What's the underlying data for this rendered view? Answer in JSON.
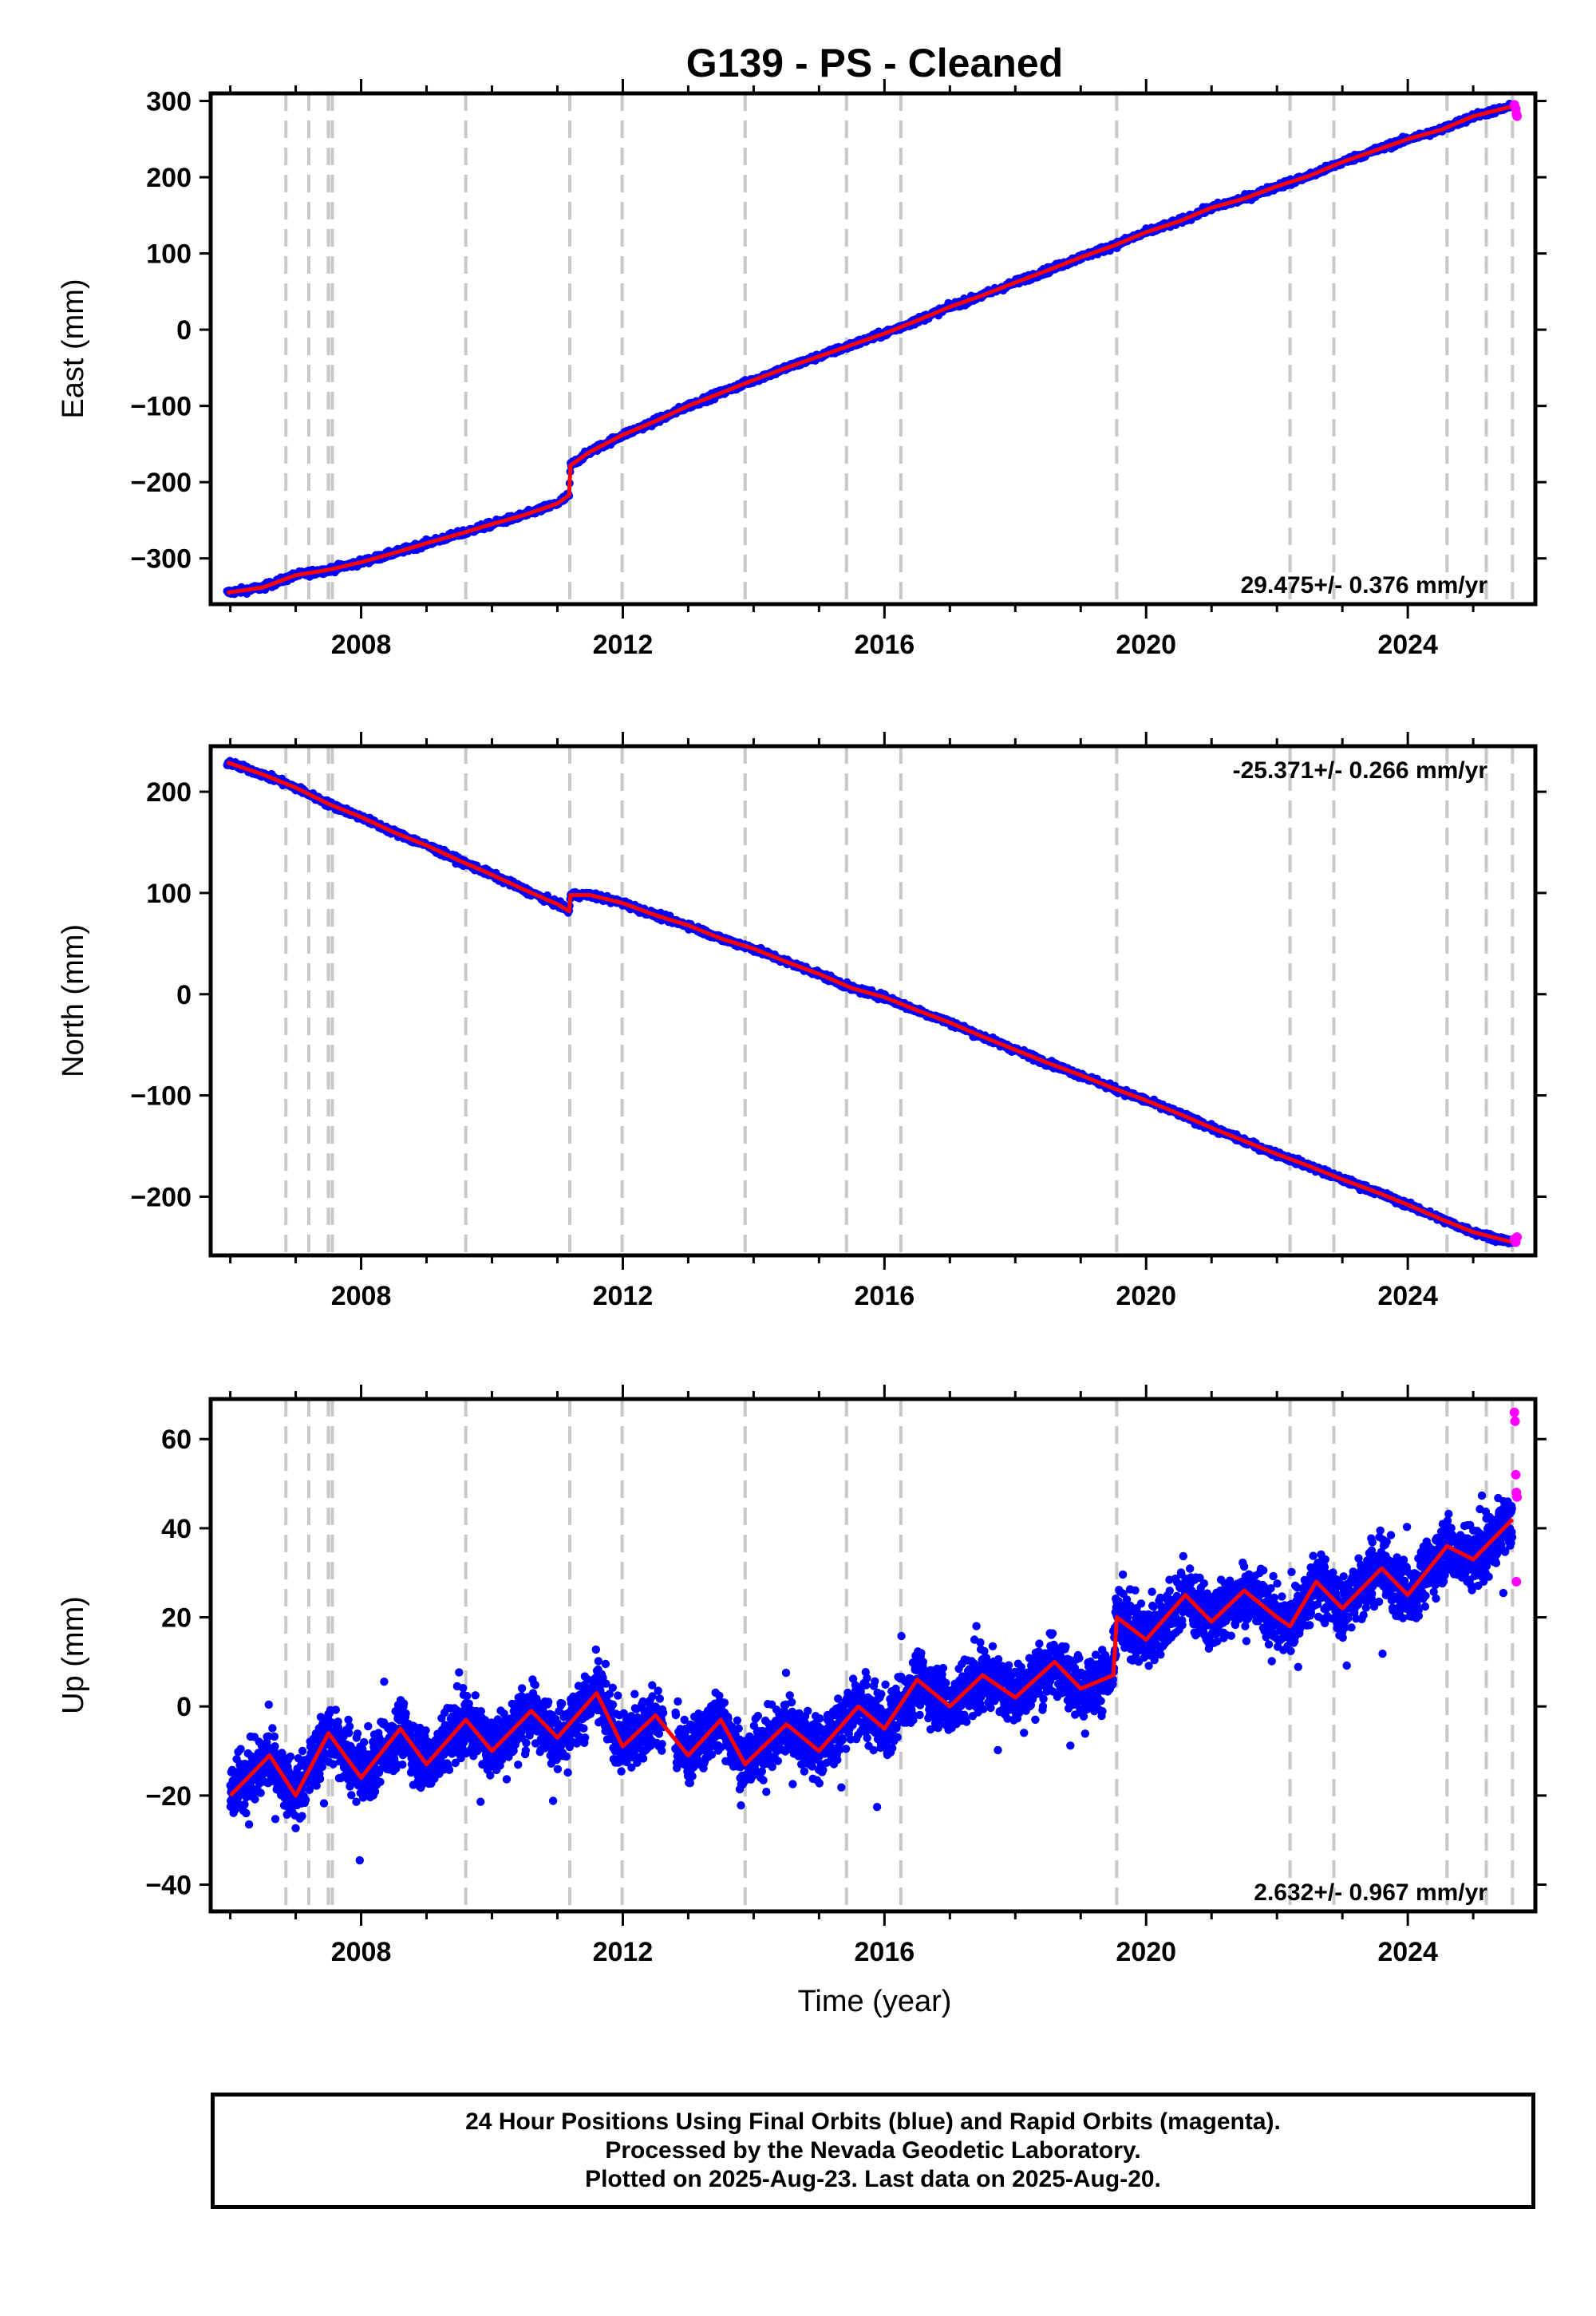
{
  "title": "G139  - PS - Cleaned",
  "xlabel": "Time (year)",
  "colors": {
    "final": "#0000ff",
    "rapid": "#ff00ff",
    "model": "#ff0000",
    "events": "#c8c8c8"
  },
  "chart_data": [
    {
      "type": "scatter",
      "component": "East",
      "ylabel": "East (mm)",
      "rate_label": "29.475+/- 0.376 mm/yr",
      "xlim": [
        2005.7,
        2025.95
      ],
      "ylim": [
        -360,
        310
      ],
      "yticks": [
        -300,
        -200,
        -100,
        0,
        100,
        200,
        300
      ],
      "ytick_labels": [
        "−300",
        "−200",
        "−100",
        "0",
        "100",
        "200",
        "300"
      ],
      "xticks": [
        2008,
        2012,
        2016,
        2020,
        2024
      ],
      "xtick_labels": [
        "2008",
        "2012",
        "2016",
        "2020",
        "2024"
      ],
      "events": [
        2006.85,
        2007.2,
        2007.5,
        2007.56,
        2009.6,
        2011.19,
        2011.99,
        2013.87,
        2015.42,
        2016.25,
        2019.55,
        2022.2,
        2022.87,
        2024.6,
        2025.2,
        2025.6
      ],
      "series": [
        {
          "name": "Final Orbits (blue)",
          "points": [
            [
              2005.95,
              -345
            ],
            [
              2006.5,
              -338
            ],
            [
              2007.0,
              -322
            ],
            [
              2007.5,
              -315
            ],
            [
              2008.0,
              -305
            ],
            [
              2008.5,
              -293
            ],
            [
              2009.0,
              -280
            ],
            [
              2009.5,
              -268
            ],
            [
              2010.0,
              -255
            ],
            [
              2010.5,
              -243
            ],
            [
              2011.0,
              -228
            ],
            [
              2011.18,
              -217
            ],
            [
              2011.2,
              -178
            ],
            [
              2011.5,
              -160
            ],
            [
              2012.0,
              -138
            ],
            [
              2012.5,
              -120
            ],
            [
              2013.0,
              -100
            ],
            [
              2013.5,
              -83
            ],
            [
              2014.0,
              -66
            ],
            [
              2014.5,
              -50
            ],
            [
              2015.0,
              -35
            ],
            [
              2015.5,
              -20
            ],
            [
              2016.0,
              -5
            ],
            [
              2016.5,
              12
            ],
            [
              2017.0,
              30
            ],
            [
              2017.5,
              45
            ],
            [
              2018.0,
              62
            ],
            [
              2018.5,
              78
            ],
            [
              2019.0,
              95
            ],
            [
              2019.5,
              110
            ],
            [
              2020.0,
              128
            ],
            [
              2020.5,
              142
            ],
            [
              2021.0,
              160
            ],
            [
              2021.5,
              172
            ],
            [
              2022.0,
              188
            ],
            [
              2022.5,
              202
            ],
            [
              2023.0,
              220
            ],
            [
              2023.5,
              235
            ],
            [
              2024.0,
              250
            ],
            [
              2024.5,
              262
            ],
            [
              2025.0,
              280
            ],
            [
              2025.6,
              293
            ]
          ]
        },
        {
          "name": "Rapid Orbits (magenta)",
          "points": [
            [
              2025.63,
              295
            ],
            [
              2025.65,
              290
            ],
            [
              2025.66,
              283
            ],
            [
              2025.67,
              280
            ]
          ]
        }
      ]
    },
    {
      "type": "scatter",
      "component": "North",
      "ylabel": "North (mm)",
      "rate_label": "-25.371+/- 0.266 mm/yr",
      "xlim": [
        2005.7,
        2025.95
      ],
      "ylim": [
        -258,
        245
      ],
      "yticks": [
        -200,
        -100,
        0,
        100,
        200
      ],
      "ytick_labels": [
        "−200",
        "−100",
        "0",
        "100",
        "200"
      ],
      "xticks": [
        2008,
        2012,
        2016,
        2020,
        2024
      ],
      "xtick_labels": [
        "2008",
        "2012",
        "2016",
        "2020",
        "2024"
      ],
      "events": [
        2006.85,
        2007.2,
        2007.5,
        2007.56,
        2009.6,
        2011.19,
        2011.99,
        2013.87,
        2015.42,
        2016.25,
        2019.55,
        2022.2,
        2022.87,
        2024.6,
        2025.2,
        2025.6
      ],
      "series": [
        {
          "name": "Final Orbits (blue)",
          "points": [
            [
              2005.95,
              229
            ],
            [
              2006.5,
              217
            ],
            [
              2007.0,
              204
            ],
            [
              2007.5,
              188
            ],
            [
              2008.0,
              175
            ],
            [
              2008.5,
              160
            ],
            [
              2009.0,
              147
            ],
            [
              2009.5,
              132
            ],
            [
              2010.0,
              118
            ],
            [
              2010.5,
              103
            ],
            [
              2011.0,
              89
            ],
            [
              2011.18,
              82
            ],
            [
              2011.2,
              98
            ],
            [
              2011.5,
              98
            ],
            [
              2012.0,
              90
            ],
            [
              2012.5,
              78
            ],
            [
              2013.0,
              68
            ],
            [
              2013.5,
              55
            ],
            [
              2014.0,
              45
            ],
            [
              2014.5,
              32
            ],
            [
              2015.0,
              20
            ],
            [
              2015.5,
              6
            ],
            [
              2016.0,
              -3
            ],
            [
              2016.5,
              -16
            ],
            [
              2017.0,
              -28
            ],
            [
              2017.5,
              -42
            ],
            [
              2018.0,
              -55
            ],
            [
              2018.5,
              -68
            ],
            [
              2019.0,
              -80
            ],
            [
              2019.5,
              -93
            ],
            [
              2020.0,
              -105
            ],
            [
              2020.5,
              -118
            ],
            [
              2021.0,
              -132
            ],
            [
              2021.5,
              -145
            ],
            [
              2022.0,
              -158
            ],
            [
              2022.5,
              -170
            ],
            [
              2023.0,
              -183
            ],
            [
              2023.5,
              -195
            ],
            [
              2024.0,
              -208
            ],
            [
              2024.5,
              -222
            ],
            [
              2025.0,
              -235
            ],
            [
              2025.6,
              -245
            ]
          ]
        },
        {
          "name": "Rapid Orbits (magenta)",
          "points": [
            [
              2025.63,
              -242
            ],
            [
              2025.65,
              -245
            ],
            [
              2025.67,
              -240
            ]
          ]
        }
      ]
    },
    {
      "type": "scatter",
      "component": "Up",
      "ylabel": "Up (mm)",
      "rate_label": "2.632+/- 0.967 mm/yr",
      "xlim": [
        2005.7,
        2025.95
      ],
      "ylim": [
        -46,
        69
      ],
      "yticks": [
        -40,
        -20,
        0,
        20,
        40,
        60
      ],
      "ytick_labels": [
        "−40",
        "−20",
        "0",
        "20",
        "40",
        "60"
      ],
      "xticks": [
        2008,
        2012,
        2016,
        2020,
        2024
      ],
      "xtick_labels": [
        "2008",
        "2012",
        "2016",
        "2020",
        "2024"
      ],
      "events": [
        2006.85,
        2007.2,
        2007.5,
        2007.56,
        2009.6,
        2011.19,
        2011.99,
        2013.87,
        2015.42,
        2016.25,
        2019.55,
        2022.2,
        2022.87,
        2024.6,
        2025.2,
        2025.6
      ],
      "series": [
        {
          "name": "Final Orbits (blue)",
          "points": [
            [
              2006.0,
              -20
            ],
            [
              2006.6,
              -11
            ],
            [
              2007.0,
              -20
            ],
            [
              2007.5,
              -6
            ],
            [
              2008.0,
              -16
            ],
            [
              2008.6,
              -5
            ],
            [
              2009.0,
              -13
            ],
            [
              2009.6,
              -3
            ],
            [
              2010.0,
              -10
            ],
            [
              2010.6,
              -1
            ],
            [
              2011.0,
              -7
            ],
            [
              2011.6,
              3
            ],
            [
              2012.0,
              -9
            ],
            [
              2012.5,
              -2
            ],
            [
              2013.0,
              -11
            ],
            [
              2013.5,
              -3
            ],
            [
              2013.87,
              -13
            ],
            [
              2014.5,
              -4
            ],
            [
              2015.0,
              -10
            ],
            [
              2015.6,
              0
            ],
            [
              2016.0,
              -5
            ],
            [
              2016.5,
              6
            ],
            [
              2017.0,
              0
            ],
            [
              2017.5,
              7
            ],
            [
              2018.0,
              2
            ],
            [
              2018.6,
              10
            ],
            [
              2019.0,
              4
            ],
            [
              2019.5,
              7
            ],
            [
              2019.55,
              20
            ],
            [
              2020.0,
              15
            ],
            [
              2020.6,
              25
            ],
            [
              2021.0,
              19
            ],
            [
              2021.5,
              26
            ],
            [
              2022.0,
              20
            ],
            [
              2022.2,
              18
            ],
            [
              2022.6,
              28
            ],
            [
              2023.0,
              22
            ],
            [
              2023.6,
              31
            ],
            [
              2024.0,
              25
            ],
            [
              2024.6,
              36
            ],
            [
              2025.0,
              33
            ],
            [
              2025.6,
              42
            ]
          ]
        },
        {
          "name": "Rapid Orbits (magenta)",
          "points": [
            [
              2025.63,
              66
            ],
            [
              2025.64,
              64
            ],
            [
              2025.65,
              52
            ],
            [
              2025.66,
              48
            ],
            [
              2025.67,
              47
            ],
            [
              2025.66,
              28
            ]
          ]
        }
      ]
    }
  ],
  "info_box": {
    "line1": "24 Hour Positions Using Final Orbits (blue) and Rapid Orbits (magenta).",
    "line2": "Processed by the Nevada Geodetic Laboratory.",
    "line3": "Plotted on 2025-Aug-23. Last data on 2025-Aug-20."
  }
}
